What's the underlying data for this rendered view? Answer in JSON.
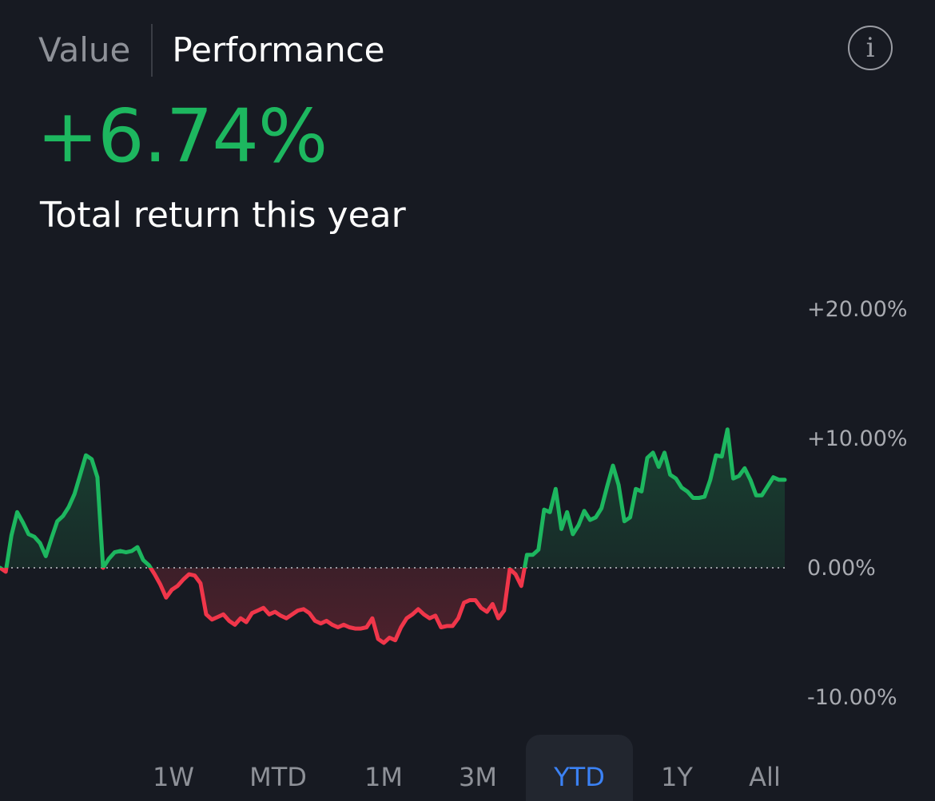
{
  "tabs": {
    "value_label": "Value",
    "performance_label": "Performance",
    "active": "Performance"
  },
  "info_icon": {
    "icon": "info-icon",
    "glyph": "i"
  },
  "summary": {
    "total_return": "+6.74%",
    "label": "Total return this year",
    "positive_color": "#1db75f",
    "negative_color": "#f0364a"
  },
  "time_ranges": {
    "items": [
      "1W",
      "MTD",
      "1M",
      "3M",
      "YTD",
      "1Y",
      "All"
    ],
    "selected": "YTD",
    "accent_color": "#3b82f6"
  },
  "chart_data": {
    "type": "line",
    "ytick_labels": [
      "+20.00%",
      "+10.00%",
      "0.00%",
      "-10.00%"
    ],
    "yticks": [
      20,
      10,
      0,
      -10
    ],
    "ylim": [
      -13,
      22
    ],
    "baseline": 0,
    "grid": false,
    "series": [
      {
        "values": [
          0,
          -0.3,
          2.5,
          4.3,
          3.5,
          2.6,
          2.4,
          1.9,
          0.9,
          2.3,
          3.6,
          4,
          4.7,
          5.7,
          7.2,
          8.7,
          8.4,
          7,
          0,
          0.7,
          1.2,
          1.3,
          1.2,
          1.3,
          1.6,
          0.6,
          0.2,
          -0.5,
          -1.3,
          -2.3,
          -1.7,
          -1.4,
          -0.9,
          -0.5,
          -0.6,
          -1.2,
          -3.6,
          -4,
          -3.8,
          -3.6,
          -4.1,
          -4.4,
          -3.9,
          -4.2,
          -3.5,
          -3.3,
          -3.1,
          -3.6,
          -3.4,
          -3.7,
          -3.9,
          -3.6,
          -3.3,
          -3.2,
          -3.5,
          -4.1,
          -4.3,
          -4.1,
          -4.4,
          -4.6,
          -4.4,
          -4.6,
          -4.7,
          -4.7,
          -4.6,
          -3.9,
          -5.5,
          -5.8,
          -5.4,
          -5.6,
          -4.6,
          -3.9,
          -3.6,
          -3.2,
          -3.6,
          -3.9,
          -3.7,
          -4.6,
          -4.5,
          -4.5,
          -3.9,
          -2.7,
          -2.5,
          -2.5,
          -3.1,
          -3.4,
          -2.8,
          -3.9,
          -3.3,
          -0.1,
          -0.5,
          -1.4,
          1,
          1,
          1.4,
          4.5,
          4.3,
          6.1,
          3,
          4.3,
          2.6,
          3.3,
          4.4,
          3.7,
          3.9,
          4.6,
          6.3,
          7.9,
          6.4,
          3.6,
          3.9,
          6.1,
          5.9,
          8.5,
          8.9,
          7.8,
          8.9,
          7.2,
          6.9,
          6.2,
          5.9,
          5.4,
          5.4,
          5.5,
          6.8,
          8.7,
          8.6,
          10.7,
          6.9,
          7.1,
          7.7,
          6.8,
          5.6,
          5.6,
          6.3,
          7,
          6.8,
          6.8
        ]
      }
    ]
  }
}
